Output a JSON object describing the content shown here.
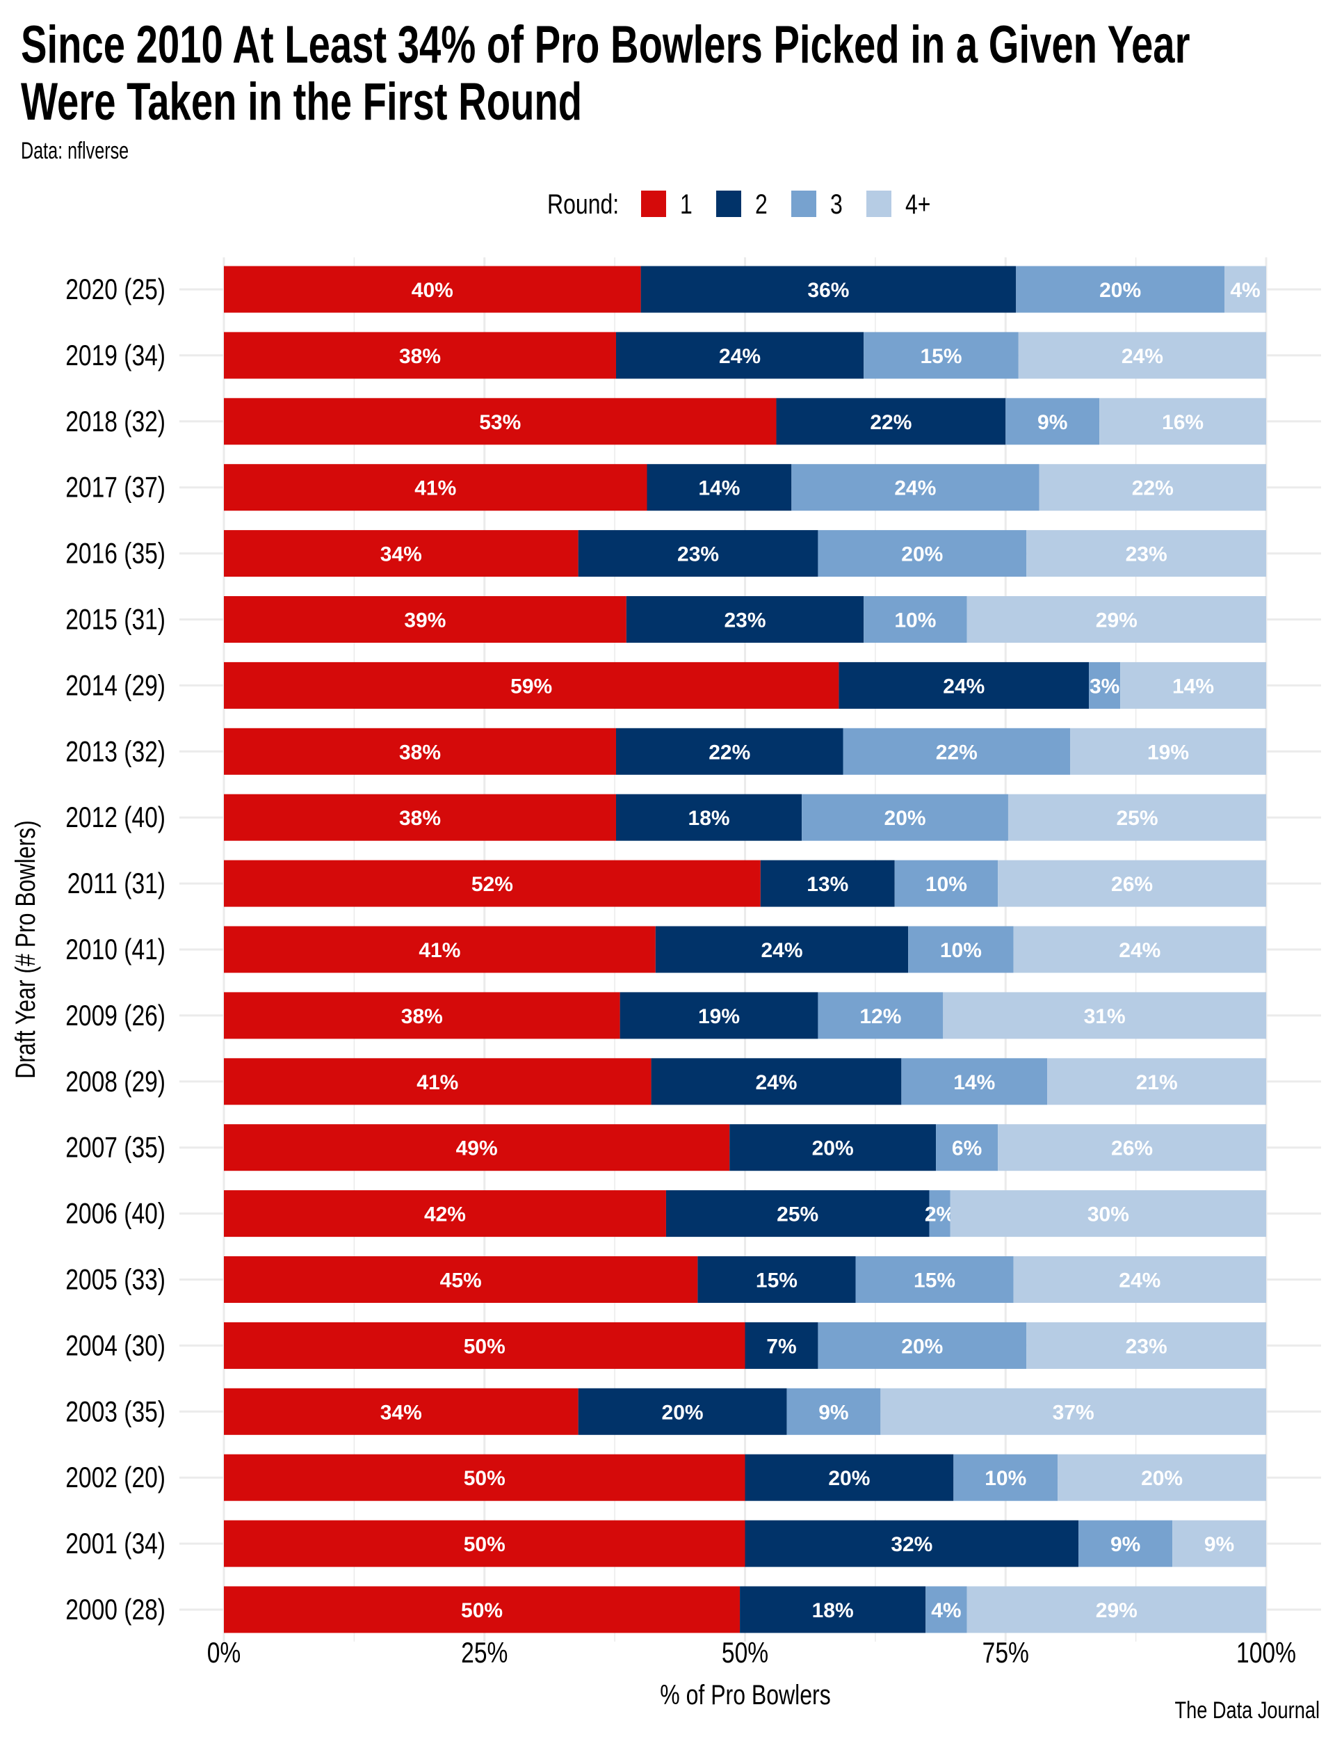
{
  "chart_data": {
    "type": "bar",
    "orientation": "horizontal",
    "stacked": true,
    "title": "Since 2010 At Least 34% of Pro Bowlers Picked in a Given Year Were Taken in the First Round",
    "title_lines": [
      "Since 2010 At Least 34% of Pro Bowlers Picked in a Given Year",
      "Were Taken in the First Round"
    ],
    "subtitle": "Data: nflverse",
    "caption": "The Data Journal",
    "xlabel": "% of Pro Bowlers",
    "ylabel": "Draft Year (# Pro Bowlers)",
    "xlim": [
      0,
      100
    ],
    "xticks": [
      "0%",
      "25%",
      "50%",
      "75%",
      "100%"
    ],
    "grid": true,
    "legend": {
      "title": "Round:",
      "placement": "top",
      "entries": [
        "1",
        "2",
        "3",
        "4+"
      ]
    },
    "colors": [
      "#d50a0a",
      "#013369",
      "#77a2cf",
      "#b6cce4"
    ],
    "categories": [
      "2020 (25)",
      "2019 (34)",
      "2018 (32)",
      "2017 (37)",
      "2016 (35)",
      "2015 (31)",
      "2014 (29)",
      "2013 (32)",
      "2012 (40)",
      "2011 (31)",
      "2010 (41)",
      "2009 (26)",
      "2008 (29)",
      "2007 (35)",
      "2006 (40)",
      "2005 (33)",
      "2004 (30)",
      "2003 (35)",
      "2002 (20)",
      "2001 (34)",
      "2000 (28)"
    ],
    "series": [
      {
        "name": "1",
        "values": [
          40,
          38,
          53,
          41,
          34,
          39,
          59,
          38,
          38,
          52,
          41,
          38,
          41,
          49,
          42,
          45,
          50,
          34,
          50,
          50,
          50
        ]
      },
      {
        "name": "2",
        "values": [
          36,
          24,
          22,
          14,
          23,
          23,
          24,
          22,
          18,
          13,
          24,
          19,
          24,
          20,
          25,
          15,
          7,
          20,
          20,
          32,
          18
        ]
      },
      {
        "name": "3",
        "values": [
          20,
          15,
          9,
          24,
          20,
          10,
          3,
          22,
          20,
          10,
          10,
          12,
          14,
          6,
          2,
          15,
          20,
          9,
          10,
          9,
          4
        ]
      },
      {
        "name": "4+",
        "values": [
          4,
          24,
          16,
          22,
          23,
          29,
          14,
          19,
          25,
          26,
          24,
          31,
          21,
          26,
          30,
          24,
          23,
          37,
          20,
          9,
          29
        ]
      }
    ],
    "labels": [
      [
        "40%",
        "36%",
        "20%",
        "4%"
      ],
      [
        "38%",
        "24%",
        "15%",
        "24%"
      ],
      [
        "53%",
        "22%",
        "9%",
        "16%"
      ],
      [
        "41%",
        "14%",
        "24%",
        "22%"
      ],
      [
        "34%",
        "23%",
        "20%",
        "23%"
      ],
      [
        "39%",
        "23%",
        "10%",
        "29%"
      ],
      [
        "59%",
        "24%",
        "3%",
        "14%"
      ],
      [
        "38%",
        "22%",
        "22%",
        "19%"
      ],
      [
        "38%",
        "18%",
        "20%",
        "25%"
      ],
      [
        "52%",
        "13%",
        "10%",
        "26%"
      ],
      [
        "41%",
        "24%",
        "10%",
        "24%"
      ],
      [
        "38%",
        "19%",
        "12%",
        "31%"
      ],
      [
        "41%",
        "24%",
        "14%",
        "21%"
      ],
      [
        "49%",
        "20%",
        "6%",
        "26%"
      ],
      [
        "42%",
        "25%",
        "2%",
        "30%"
      ],
      [
        "45%",
        "15%",
        "15%",
        "24%"
      ],
      [
        "50%",
        "7%",
        "20%",
        "23%"
      ],
      [
        "34%",
        "20%",
        "9%",
        "37%"
      ],
      [
        "50%",
        "20%",
        "10%",
        "20%"
      ],
      [
        "50%",
        "32%",
        "9%",
        "9%"
      ],
      [
        "50%",
        "18%",
        "4%",
        "29%"
      ]
    ]
  }
}
